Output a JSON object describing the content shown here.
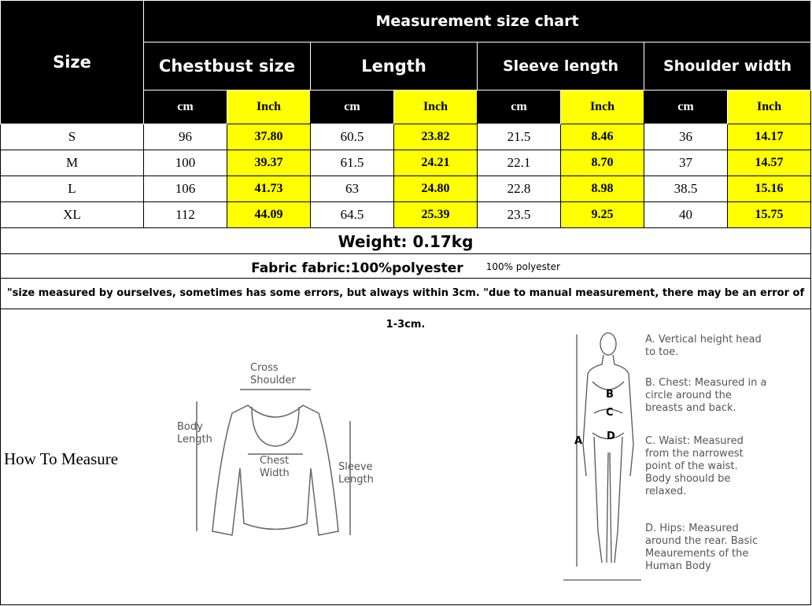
{
  "title": "Measurement size chart",
  "size_header": "Size",
  "groups": [
    "Chestbust size",
    "Length",
    "Sleeve length",
    "Shoulder width"
  ],
  "units": {
    "cm": "cm",
    "inch": "Inch"
  },
  "rows": [
    {
      "size": "S",
      "values": [
        "96",
        "37.80",
        "60.5",
        "23.82",
        "21.5",
        "8.46",
        "36",
        "14.17"
      ]
    },
    {
      "size": "M",
      "values": [
        "100",
        "39.37",
        "61.5",
        "24.21",
        "22.1",
        "8.70",
        "37",
        "14.57"
      ]
    },
    {
      "size": "L",
      "values": [
        "106",
        "41.73",
        "63",
        "24.80",
        "22.8",
        "8.98",
        "38.5",
        "15.16"
      ]
    },
    {
      "size": "XL",
      "values": [
        "112",
        "44.09",
        "64.5",
        "25.39",
        "23.5",
        "9.25",
        "40",
        "15.75"
      ]
    }
  ],
  "weight": "Weight: 0.17kg",
  "fabric": "Fabric fabric:100%polyester",
  "fabric_note": "100% polyester",
  "note": "\"size measured by ourselves, sometimes has some errors, but always within 3cm. \"due to manual measurement, there may be an error of 1-3cm.",
  "how_to_measure": "How To Measure",
  "sweater_labels": {
    "cross_shoulder": "Cross Shoulder",
    "body_length": "Body Length",
    "chest_width": "Chest Width",
    "sleeve_length": "Sleeve Length"
  },
  "body_labels": {
    "a": "A",
    "b": "B",
    "c": "C",
    "d": "D"
  },
  "body_notes": [
    "A. Vertical height head to toe.",
    "B. Chest: Measured in a circle around the breasts and back.",
    "C. Waist: Measured from the narrowest point of the waist. Body shoould be relaxed.",
    "D. Hips: Measured around the rear. Basic Meaurements of the Human Body"
  ],
  "colors": {
    "header_bg": "#000000",
    "inch_highlight": "#ffff00"
  }
}
